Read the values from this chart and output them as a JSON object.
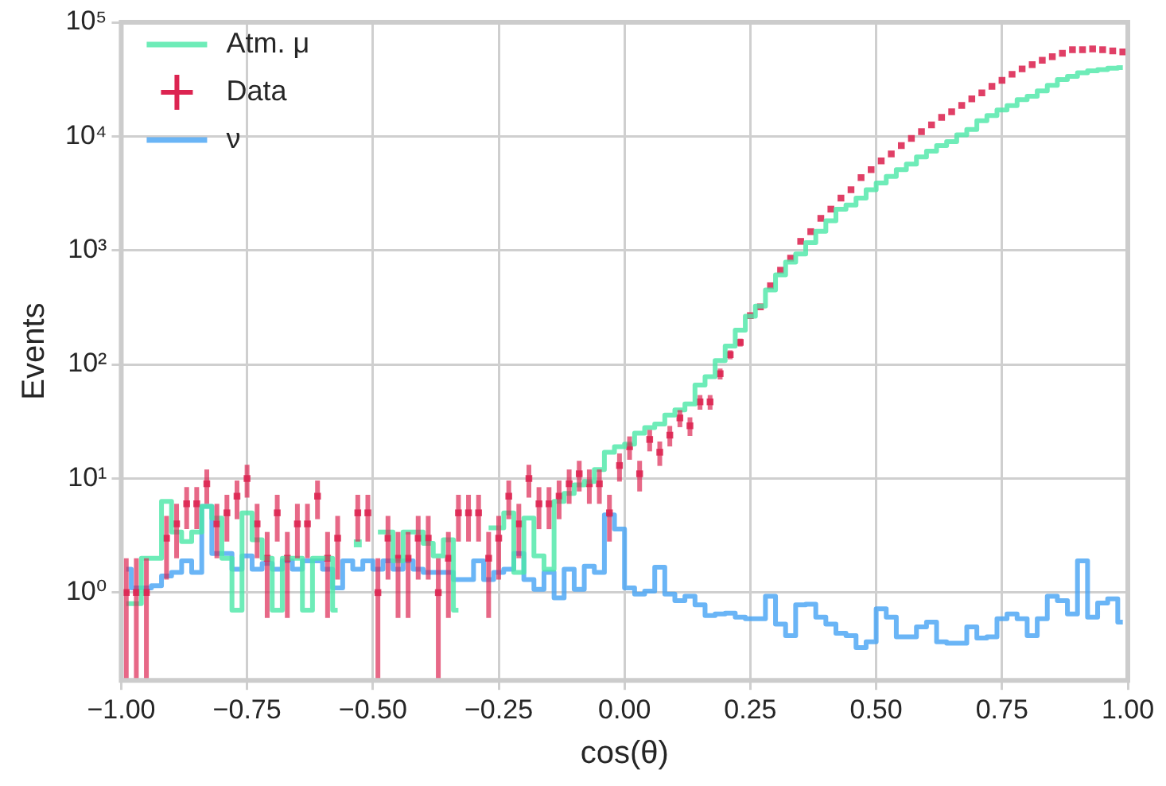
{
  "chart_data": {
    "type": "step",
    "xlabel": "cos(θ)",
    "ylabel": "Events",
    "x": [
      -0.99,
      -0.97,
      -0.95,
      -0.93,
      -0.91,
      -0.89,
      -0.87,
      -0.85,
      -0.83,
      -0.81,
      -0.79,
      -0.77,
      -0.75,
      -0.73,
      -0.71,
      -0.69,
      -0.67,
      -0.65,
      -0.63,
      -0.61,
      -0.59,
      -0.57,
      -0.55,
      -0.53,
      -0.51,
      -0.49,
      -0.47,
      -0.45,
      -0.43,
      -0.41,
      -0.39,
      -0.37,
      -0.35,
      -0.33,
      -0.31,
      -0.29,
      -0.27,
      -0.25,
      -0.23,
      -0.21,
      -0.19,
      -0.17,
      -0.15,
      -0.13,
      -0.11,
      -0.09,
      -0.07,
      -0.05,
      -0.03,
      -0.01,
      0.01,
      0.03,
      0.05,
      0.07,
      0.09,
      0.11,
      0.13,
      0.15,
      0.17,
      0.19,
      0.21,
      0.23,
      0.25,
      0.27,
      0.29,
      0.31,
      0.33,
      0.35,
      0.37,
      0.39,
      0.41,
      0.43,
      0.45,
      0.47,
      0.49,
      0.51,
      0.53,
      0.55,
      0.57,
      0.59,
      0.61,
      0.63,
      0.65,
      0.67,
      0.69,
      0.71,
      0.73,
      0.75,
      0.77,
      0.79,
      0.81,
      0.83,
      0.85,
      0.87,
      0.89,
      0.91,
      0.93,
      0.95,
      0.97,
      0.99
    ],
    "series": [
      {
        "name": "Atm. μ",
        "color": "#4de8a8",
        "values": [
          0.8,
          0.8,
          2,
          2,
          6.3,
          3.4,
          2.8,
          3.4,
          5.7,
          4.5,
          2,
          0.7,
          5,
          2.9,
          2,
          0.7,
          2,
          2,
          0.7,
          2,
          2,
          0.7,
          null,
          2.7,
          null,
          3.4,
          3.4,
          1.9,
          3.4,
          3.4,
          2.7,
          2.1,
          2.9,
          0.7,
          null,
          null,
          3.7,
          3.7,
          5,
          1.5,
          4.5,
          2.1,
          1.6,
          6.3,
          7.4,
          8.8,
          9.4,
          12,
          17,
          19,
          20,
          25,
          28,
          30,
          36,
          40,
          45,
          66,
          78,
          108,
          145,
          200,
          265,
          325,
          450,
          610,
          790,
          930,
          1170,
          1470,
          1820,
          2300,
          2500,
          2880,
          3400,
          3900,
          4450,
          5100,
          5700,
          6600,
          7400,
          8300,
          9000,
          10300,
          11500,
          13700,
          15200,
          17000,
          18600,
          21000,
          22500,
          25000,
          28000,
          31500,
          33500,
          36000,
          37500,
          38500,
          39500,
          40000
        ]
      },
      {
        "name": "Data",
        "type": "scatter",
        "color": "#dc2451",
        "values": [
          1,
          1,
          1,
          null,
          3,
          4,
          6,
          6,
          9,
          4,
          5,
          7,
          10,
          4,
          2,
          5,
          2,
          4,
          4,
          7,
          2,
          3,
          null,
          5,
          5,
          1,
          3,
          2,
          2,
          3,
          3,
          1,
          2,
          5,
          5,
          5,
          2,
          3,
          7,
          4,
          10,
          6,
          6,
          7,
          9,
          11,
          9,
          9,
          5,
          13,
          19,
          11,
          22,
          17,
          24,
          34,
          29,
          47,
          47,
          83,
          122,
          156,
          268,
          320,
          490,
          670,
          855,
          1200,
          1460,
          1910,
          2300,
          2870,
          3400,
          4350,
          5100,
          6100,
          7000,
          8300,
          9600,
          11000,
          12600,
          14700,
          16400,
          18700,
          21300,
          24000,
          27500,
          31000,
          35000,
          39000,
          42600,
          46500,
          50000,
          53500,
          57500,
          57500,
          58500,
          57500,
          56000,
          55000
        ],
        "marker": "square",
        "errors": [
          [
            0.17,
            2
          ],
          [
            0.17,
            2
          ],
          [
            0.17,
            2
          ],
          null,
          1.7,
          2,
          2.4,
          2.4,
          3,
          2,
          2.2,
          2.6,
          3.2,
          2,
          1.4,
          2.2,
          1.4,
          2,
          2,
          2.6,
          1.4,
          1.7,
          null,
          2.2,
          2.2,
          [
            0.17,
            2
          ],
          1.7,
          1.4,
          1.4,
          1.7,
          1.7,
          [
            0.17,
            2
          ],
          1.4,
          2.2,
          2.2,
          2.2,
          1.4,
          1.7,
          2.6,
          2,
          3.2,
          2.4,
          2.4,
          2.6,
          3,
          3.3,
          3,
          3,
          2.2,
          3.6,
          4.4,
          3.3,
          4.7,
          4.1,
          4.9,
          5.8,
          5.4,
          6.9,
          6.9,
          9.1,
          11,
          12.5,
          null,
          null,
          null,
          null,
          null,
          null,
          null,
          null,
          null,
          null,
          null,
          null,
          null,
          null,
          null,
          null,
          null,
          null,
          null,
          null,
          null,
          null,
          null,
          null,
          null,
          null,
          null,
          null,
          null,
          null,
          null,
          null,
          null,
          null,
          null,
          null,
          null,
          null
        ]
      },
      {
        "name": "ν",
        "color": "#48a4f4",
        "values": [
          1.6,
          1.1,
          1.1,
          1.15,
          1.4,
          1.5,
          1.9,
          1.5,
          5.7,
          2.2,
          2.2,
          1.6,
          2.1,
          1.6,
          1.8,
          1.6,
          1.9,
          1.6,
          1.9,
          1.9,
          1.6,
          1.1,
          1.9,
          1.6,
          1.9,
          1.6,
          1.9,
          1.6,
          1.9,
          1.6,
          1.5,
          1.5,
          1.5,
          1.3,
          1.3,
          1.9,
          1.3,
          1.5,
          1.6,
          2.2,
          1.3,
          1.07,
          1.5,
          0.9,
          1.6,
          1.07,
          1.7,
          1.5,
          4.8,
          3.6,
          1.1,
          0.97,
          1.03,
          1.67,
          0.97,
          0.85,
          0.93,
          0.78,
          0.63,
          0.65,
          0.66,
          0.61,
          0.59,
          0.59,
          0.93,
          0.53,
          0.42,
          0.78,
          0.79,
          0.61,
          0.53,
          0.44,
          0.42,
          0.33,
          0.37,
          0.72,
          0.61,
          0.41,
          0.41,
          0.5,
          0.55,
          0.37,
          0.36,
          0.36,
          0.5,
          0.4,
          0.41,
          0.59,
          0.65,
          0.59,
          0.42,
          0.59,
          0.93,
          0.85,
          0.65,
          1.9,
          0.61,
          0.81,
          0.88,
          0.55
        ]
      }
    ],
    "xlim": [
      -1,
      1
    ],
    "xticks": [
      {
        "value": -1,
        "label": "−1.00"
      },
      {
        "value": -0.75,
        "label": "−0.75"
      },
      {
        "value": -0.5,
        "label": "−0.50"
      },
      {
        "value": -0.25,
        "label": "−0.25"
      },
      {
        "value": 0,
        "label": "0.00"
      },
      {
        "value": 0.25,
        "label": "0.25"
      },
      {
        "value": 0.5,
        "label": "0.50"
      },
      {
        "value": 0.75,
        "label": "0.75"
      },
      {
        "value": 1,
        "label": "1.00"
      }
    ],
    "ylim": [
      0.17,
      100000
    ],
    "yticks": [
      {
        "value": 1,
        "label": "10⁰"
      },
      {
        "value": 10,
        "label": "10¹"
      },
      {
        "value": 100,
        "label": "10²"
      },
      {
        "value": 1000,
        "label": "10³"
      },
      {
        "value": 10000,
        "label": "10⁴"
      },
      {
        "value": 100000,
        "label": "10⁵"
      }
    ],
    "log": "y",
    "grid": true,
    "legend": "top left"
  }
}
